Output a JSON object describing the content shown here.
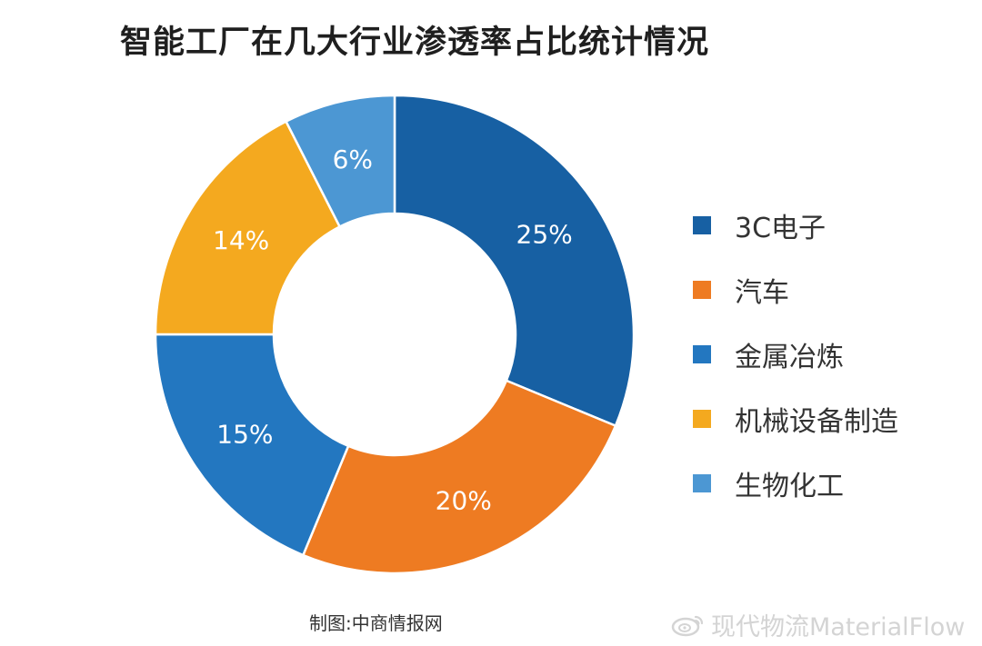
{
  "chart_data": {
    "type": "pie",
    "variant": "donut",
    "title": "智能工厂在几大行业渗透率占比统计情况",
    "categories": [
      "3C电子",
      "汽车",
      "金属冶炼",
      "机械设备制造",
      "生物化工"
    ],
    "values": [
      25,
      20,
      15,
      14,
      6
    ],
    "value_labels": [
      "25%",
      "20%",
      "15%",
      "14%",
      "6%"
    ],
    "colors": [
      "#1760A3",
      "#EE7B22",
      "#2377C0",
      "#F4A91F",
      "#4C97D3"
    ],
    "label_color": "#ffffff",
    "start": "12 o'clock",
    "direction": "clockwise",
    "legend_position": "right"
  },
  "footer": {
    "source": "制图:中商情报网"
  },
  "watermark": {
    "text": "现代物流MaterialFlow",
    "icon": "weibo-logo-icon"
  }
}
